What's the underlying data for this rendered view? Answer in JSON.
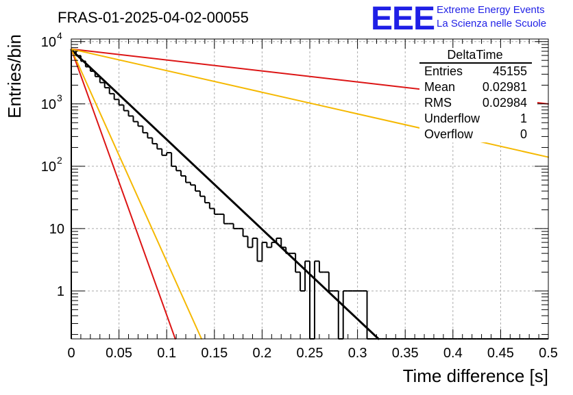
{
  "chart_data": {
    "type": "histogram",
    "title": "FRAS-01-2025-04-02-00055",
    "xlabel": "Time difference [s]",
    "ylabel": "Entries/bin",
    "xlim": [
      0,
      0.5
    ],
    "ylim": [
      0.17,
      11000
    ],
    "yscale": "log",
    "grid": true,
    "x_ticks": [
      {
        "v": 0,
        "label": "0"
      },
      {
        "v": 0.05,
        "label": "0.05"
      },
      {
        "v": 0.1,
        "label": "0.1"
      },
      {
        "v": 0.15,
        "label": "0.15"
      },
      {
        "v": 0.2,
        "label": "0.2"
      },
      {
        "v": 0.25,
        "label": "0.25"
      },
      {
        "v": 0.3,
        "label": "0.3"
      },
      {
        "v": 0.35,
        "label": "0.35"
      },
      {
        "v": 0.4,
        "label": "0.4"
      },
      {
        "v": 0.45,
        "label": "0.45"
      },
      {
        "v": 0.5,
        "label": "0.5"
      }
    ],
    "y_ticks": [
      {
        "v": 1,
        "label": "1"
      },
      {
        "v": 10,
        "label": "10"
      },
      {
        "v": 100,
        "label": "10",
        "exp": "2"
      },
      {
        "v": 1000,
        "label": "10",
        "exp": "3"
      },
      {
        "v": 10000,
        "label": "10",
        "exp": "4"
      }
    ],
    "histogram": {
      "name": "DeltaTime",
      "color": "#000000",
      "bin_width": 0.005,
      "counts": [
        7400,
        5950,
        4850,
        3950,
        3350,
        2750,
        2200,
        1820,
        1460,
        1180,
        960,
        780,
        640,
        520,
        440,
        345,
        285,
        230,
        190,
        150,
        165,
        100,
        85,
        70,
        55,
        50,
        40,
        33,
        26,
        21,
        17,
        17,
        12,
        12,
        10,
        10,
        7.5,
        5,
        7,
        3,
        6,
        5,
        6,
        7,
        5,
        4,
        4,
        2,
        1,
        3,
        0,
        3,
        2,
        2,
        1,
        1,
        0,
        1,
        1,
        1,
        1,
        1,
        0,
        0,
        0,
        0,
        0,
        0,
        0,
        0,
        0,
        0,
        0,
        0,
        0,
        0,
        0,
        0,
        0,
        0,
        0,
        0,
        0,
        0,
        0,
        0,
        0,
        0,
        0,
        0,
        0,
        0,
        0,
        0,
        0,
        0,
        0,
        0,
        0,
        0
      ]
    },
    "fit_lines": [
      {
        "name": "black-fit",
        "color": "#000000",
        "width": 3,
        "x0": 0,
        "y0": 7400,
        "x1": 0.322,
        "y1": 0.17
      },
      {
        "name": "red-slow",
        "color": "#dc1414",
        "width": 2,
        "x0": 0,
        "y0": 7600,
        "x1": 0.5,
        "y1": 1000
      },
      {
        "name": "yellow-slow",
        "color": "#f5b800",
        "width": 2,
        "x0": 0,
        "y0": 7600,
        "x1": 0.5,
        "y1": 140
      },
      {
        "name": "red-fast",
        "color": "#dc1414",
        "width": 2,
        "x0": 0,
        "y0": 7600,
        "x1": 0.109,
        "y1": 0.17
      },
      {
        "name": "yellow-fast",
        "color": "#f5b800",
        "width": 2,
        "x0": 0,
        "y0": 7600,
        "x1": 0.1365,
        "y1": 0.17
      }
    ],
    "stats": {
      "title": "DeltaTime",
      "rows": [
        {
          "label": "Entries",
          "value": "45155"
        },
        {
          "label": "Mean",
          "value": "0.02981"
        },
        {
          "label": "RMS",
          "value": "0.02984"
        },
        {
          "label": "Underflow",
          "value": "1"
        },
        {
          "label": "Overflow",
          "value": "0"
        }
      ]
    }
  },
  "logo": {
    "letters": "EEE",
    "line1": "Extreme Energy Events",
    "line2": "La Scienza nelle Scuole",
    "color": "#1f1fe6"
  }
}
